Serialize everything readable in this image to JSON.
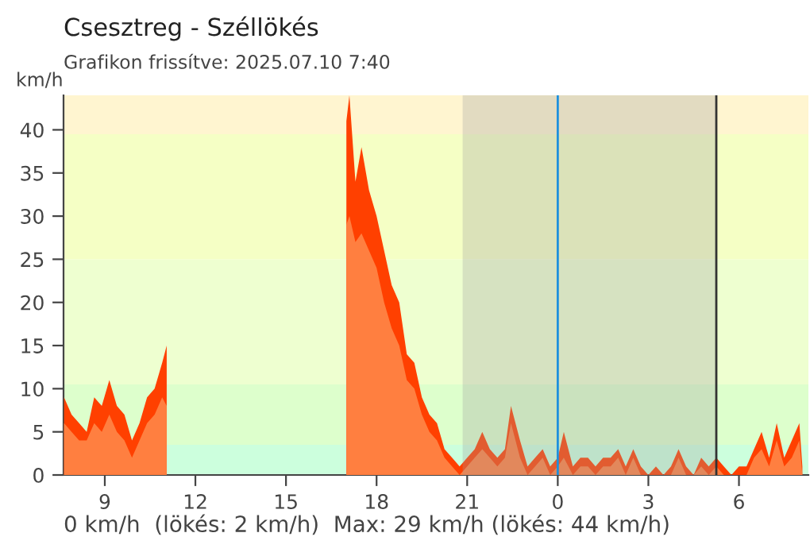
{
  "chart_data": {
    "type": "area",
    "title": "Csesztreg - Széllökés",
    "subtitle": "Grafikon frissítve: 2025.07.10 7:40",
    "ylabel": "km/h",
    "x": [
      "2025-07-09T07:39",
      "2025-07-09T07:54",
      "2025-07-09T08:09",
      "2025-07-09T08:24",
      "2025-07-09T08:39",
      "2025-07-09T08:54",
      "2025-07-09T09:09",
      "2025-07-09T09:24",
      "2025-07-09T09:39",
      "2025-07-09T09:54",
      "2025-07-09T10:09",
      "2025-07-09T10:24",
      "2025-07-09T10:39",
      "2025-07-09T10:54",
      "2025-07-09T11:03",
      "2025-07-09T11:06",
      "2025-07-09T16:54",
      "2025-07-09T17:00",
      "2025-07-09T17:06",
      "2025-07-09T17:18",
      "2025-07-09T17:30",
      "2025-07-09T17:45",
      "2025-07-09T18:00",
      "2025-07-09T18:15",
      "2025-07-09T18:30",
      "2025-07-09T18:45",
      "2025-07-09T19:00",
      "2025-07-09T19:15",
      "2025-07-09T19:30",
      "2025-07-09T19:45",
      "2025-07-09T20:00",
      "2025-07-09T20:15",
      "2025-07-09T20:30",
      "2025-07-09T20:45",
      "2025-07-09T21:00",
      "2025-07-09T21:15",
      "2025-07-09T21:30",
      "2025-07-09T21:45",
      "2025-07-09T22:00",
      "2025-07-09T22:15",
      "2025-07-09T22:27",
      "2025-07-09T22:45",
      "2025-07-09T23:00",
      "2025-07-09T23:15",
      "2025-07-09T23:30",
      "2025-07-09T23:45",
      "2025-07-10T00:00",
      "2025-07-10T00:12",
      "2025-07-10T00:30",
      "2025-07-10T00:45",
      "2025-07-10T01:00",
      "2025-07-10T01:15",
      "2025-07-10T01:30",
      "2025-07-10T01:45",
      "2025-07-10T02:00",
      "2025-07-10T02:15",
      "2025-07-10T02:30",
      "2025-07-10T02:45",
      "2025-07-10T03:00",
      "2025-07-10T03:15",
      "2025-07-10T03:30",
      "2025-07-10T03:45",
      "2025-07-10T04:00",
      "2025-07-10T04:15",
      "2025-07-10T04:30",
      "2025-07-10T04:45",
      "2025-07-10T05:00",
      "2025-07-10T05:15",
      "2025-07-10T05:30",
      "2025-07-10T05:45",
      "2025-07-10T06:00",
      "2025-07-10T06:15",
      "2025-07-10T06:30",
      "2025-07-10T06:45",
      "2025-07-10T07:00",
      "2025-07-10T07:15",
      "2025-07-10T07:30",
      "2025-07-10T07:45",
      "2025-07-10T08:00",
      "2025-07-10T08:06"
    ],
    "series": [
      {
        "color": "#ff4000",
        "values": [
          9,
          7,
          6,
          5,
          9,
          8,
          11,
          8,
          7,
          4,
          6,
          9,
          10,
          13,
          15,
          null,
          null,
          41,
          44,
          34,
          38,
          33,
          30,
          26,
          22,
          20,
          14,
          13,
          9,
          7,
          6,
          3,
          2,
          1,
          2,
          3,
          5,
          3,
          2,
          3,
          8,
          4,
          1,
          2,
          3,
          1,
          2,
          5,
          1,
          2,
          2,
          1,
          2,
          2,
          3,
          1,
          3,
          1,
          0,
          1,
          0,
          1,
          3,
          1,
          0,
          2,
          1,
          2,
          1,
          0,
          1,
          1,
          3,
          5,
          2,
          6,
          2,
          4,
          6,
          1
        ]
      },
      {
        "color": "#ff7f40",
        "values": [
          6,
          5,
          4,
          4,
          6,
          5,
          7,
          5,
          4,
          2,
          4,
          6,
          7,
          9,
          8,
          null,
          null,
          29,
          30,
          27,
          28,
          26,
          24,
          20,
          17,
          15,
          11,
          10,
          7,
          5,
          4,
          2,
          1,
          0,
          1,
          2,
          3,
          2,
          1,
          2,
          6,
          2,
          0,
          1,
          2,
          0,
          1,
          2,
          0,
          1,
          1,
          0,
          1,
          1,
          2,
          0,
          2,
          0,
          0,
          0,
          0,
          0,
          2,
          0,
          0,
          1,
          0,
          1,
          0,
          0,
          0,
          0,
          2,
          3,
          1,
          4,
          1,
          2,
          4,
          0
        ]
      }
    ],
    "xlim": [
      "2025-07-09T07:38",
      "2025-07-10T08:18"
    ],
    "xticks": [
      {
        "value": "2025-07-09T09:00",
        "label": "9"
      },
      {
        "value": "2025-07-09T12:00",
        "label": "12"
      },
      {
        "value": "2025-07-09T15:00",
        "label": "15"
      },
      {
        "value": "2025-07-09T18:00",
        "label": "18"
      },
      {
        "value": "2025-07-09T21:00",
        "label": "21"
      },
      {
        "value": "2025-07-10T00:00",
        "label": "0"
      },
      {
        "value": "2025-07-10T03:00",
        "label": "3"
      },
      {
        "value": "2025-07-10T06:00",
        "label": "6"
      }
    ],
    "ylim": [
      0,
      44
    ],
    "yticks": [
      0,
      5,
      10,
      15,
      20,
      25,
      30,
      35,
      40
    ],
    "bands": [
      {
        "axis": "y",
        "from": 0,
        "to": 3.5,
        "color": "#ccffdd"
      },
      {
        "axis": "y",
        "from": 3.5,
        "to": 10.5,
        "color": "#ddffcc"
      },
      {
        "axis": "y",
        "from": 10.5,
        "to": 25,
        "color": "#eeffd0"
      },
      {
        "axis": "y",
        "from": 25,
        "to": 39.5,
        "color": "#f5ffc5"
      },
      {
        "axis": "y",
        "from": 39.5,
        "to": 44,
        "color": "#fff5d0"
      },
      {
        "axis": "x",
        "from": "2025-07-09T20:51",
        "to": "2025-07-10T05:15",
        "color": "#a0a0a0"
      }
    ],
    "ref_lines": [
      {
        "axis": "x",
        "value": "2025-07-10T00:00",
        "color": "#1e90dd"
      },
      {
        "axis": "x",
        "value": "2025-07-10T05:15",
        "color": "#333333"
      }
    ],
    "grid": false,
    "annotations": [
      "0 km/h  (lökés: 2 km/h)  Max: 29 km/h (lökés: 44 km/h)"
    ]
  }
}
